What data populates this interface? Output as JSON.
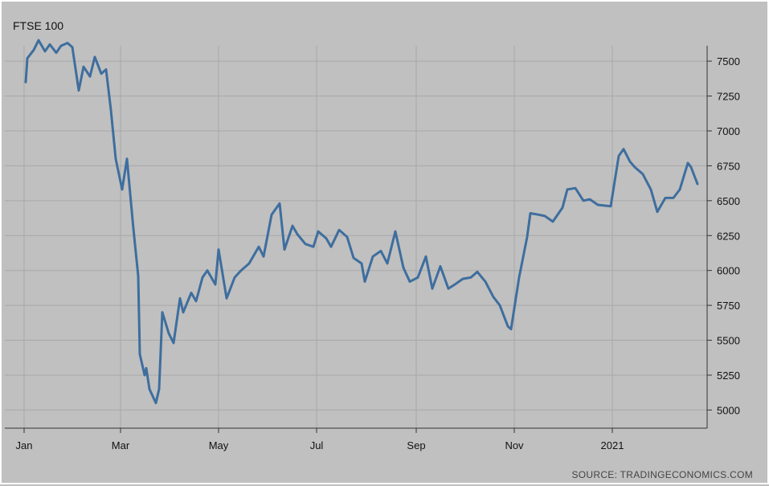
{
  "chart_data": {
    "type": "line",
    "title": "FTSE 100",
    "source": "SOURCE: TRADINGECONOMICS.COM",
    "y_ticks": [
      5000,
      5250,
      5500,
      5750,
      6000,
      6250,
      6500,
      6750,
      7000,
      7250,
      7500
    ],
    "ylim": [
      4870,
      7610
    ],
    "x_ticks": [
      "Jan",
      "Mar",
      "May",
      "Jul",
      "Sep",
      "Nov",
      "2021"
    ],
    "grid": true,
    "series": [
      {
        "color": "#3e6e9e",
        "x": [
          "2020-01-02",
          "2020-01-03",
          "2020-01-07",
          "2020-01-10",
          "2020-01-14",
          "2020-01-17",
          "2020-01-21",
          "2020-01-24",
          "2020-01-28",
          "2020-01-31",
          "2020-02-04",
          "2020-02-07",
          "2020-02-11",
          "2020-02-14",
          "2020-02-18",
          "2020-02-21",
          "2020-02-24",
          "2020-02-27",
          "2020-03-02",
          "2020-03-05",
          "2020-03-09",
          "2020-03-12",
          "2020-03-13",
          "2020-03-16",
          "2020-03-17",
          "2020-03-19",
          "2020-03-23",
          "2020-03-25",
          "2020-03-27",
          "2020-03-31",
          "2020-04-03",
          "2020-04-07",
          "2020-04-09",
          "2020-04-14",
          "2020-04-17",
          "2020-04-21",
          "2020-04-24",
          "2020-04-29",
          "2020-05-01",
          "2020-05-06",
          "2020-05-11",
          "2020-05-15",
          "2020-05-20",
          "2020-05-26",
          "2020-05-29",
          "2020-06-03",
          "2020-06-08",
          "2020-06-11",
          "2020-06-16",
          "2020-06-19",
          "2020-06-24",
          "2020-06-29",
          "2020-07-02",
          "2020-07-07",
          "2020-07-10",
          "2020-07-15",
          "2020-07-20",
          "2020-07-24",
          "2020-07-29",
          "2020-07-31",
          "2020-08-05",
          "2020-08-10",
          "2020-08-14",
          "2020-08-19",
          "2020-08-24",
          "2020-08-28",
          "2020-09-02",
          "2020-09-07",
          "2020-09-11",
          "2020-09-16",
          "2020-09-21",
          "2020-09-25",
          "2020-09-30",
          "2020-10-05",
          "2020-10-09",
          "2020-10-14",
          "2020-10-19",
          "2020-10-23",
          "2020-10-28",
          "2020-10-30",
          "2020-11-04",
          "2020-11-09",
          "2020-11-11",
          "2020-11-16",
          "2020-11-20",
          "2020-11-25",
          "2020-12-01",
          "2020-12-04",
          "2020-12-09",
          "2020-12-14",
          "2020-12-18",
          "2020-12-23",
          "2020-12-31",
          "2021-01-05",
          "2021-01-08",
          "2021-01-12",
          "2021-01-15",
          "2021-01-20",
          "2021-01-25",
          "2021-01-29",
          "2021-02-03",
          "2021-02-08",
          "2021-02-12",
          "2021-02-17",
          "2021-02-19",
          "2021-02-23"
        ],
        "values": [
          7350,
          7520,
          7580,
          7650,
          7570,
          7620,
          7560,
          7610,
          7630,
          7600,
          7290,
          7460,
          7390,
          7530,
          7410,
          7440,
          7150,
          6800,
          6580,
          6800,
          6300,
          5960,
          5400,
          5250,
          5300,
          5150,
          5050,
          5150,
          5700,
          5550,
          5480,
          5800,
          5700,
          5840,
          5780,
          5950,
          6000,
          5900,
          6150,
          5800,
          5950,
          6000,
          6050,
          6170,
          6100,
          6400,
          6480,
          6150,
          6320,
          6260,
          6190,
          6170,
          6280,
          6230,
          6170,
          6290,
          6240,
          6090,
          6050,
          5920,
          6100,
          6140,
          6050,
          6280,
          6020,
          5920,
          5950,
          6100,
          5870,
          6030,
          5870,
          5900,
          5940,
          5950,
          5990,
          5920,
          5810,
          5750,
          5600,
          5580,
          5950,
          6240,
          6410,
          6400,
          6390,
          6350,
          6450,
          6580,
          6590,
          6500,
          6510,
          6470,
          6460,
          6820,
          6870,
          6780,
          6740,
          6690,
          6580,
          6420,
          6520,
          6520,
          6580,
          6770,
          6740,
          6620
        ]
      }
    ]
  }
}
